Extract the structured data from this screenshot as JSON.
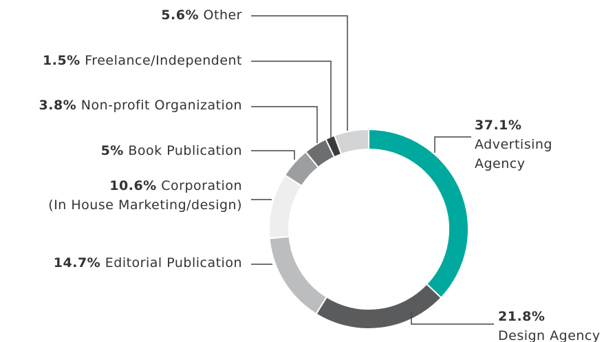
{
  "chart_data": {
    "type": "donut",
    "categories": [
      "Advertising Agency",
      "Design Agency",
      "Editorial Publication",
      "Corporation\n(In House Marketing/design)",
      "Book Publication",
      "Non-profit Organization",
      "Freelance/Independent",
      "Other"
    ],
    "values": [
      37.1,
      21.8,
      14.7,
      10.6,
      5,
      3.8,
      1.5,
      5.6
    ],
    "value_labels": [
      "37.1%",
      "21.8%",
      "14.7%",
      "10.6%",
      "5%",
      "3.8%",
      "1.5%",
      "5.6%"
    ],
    "colors": [
      "#00a99d",
      "#5a5b5d",
      "#bcbdbf",
      "#eeeeee",
      "#9d9ea0",
      "#6d6e70",
      "#3a3b3d",
      "#d3d4d6"
    ]
  }
}
